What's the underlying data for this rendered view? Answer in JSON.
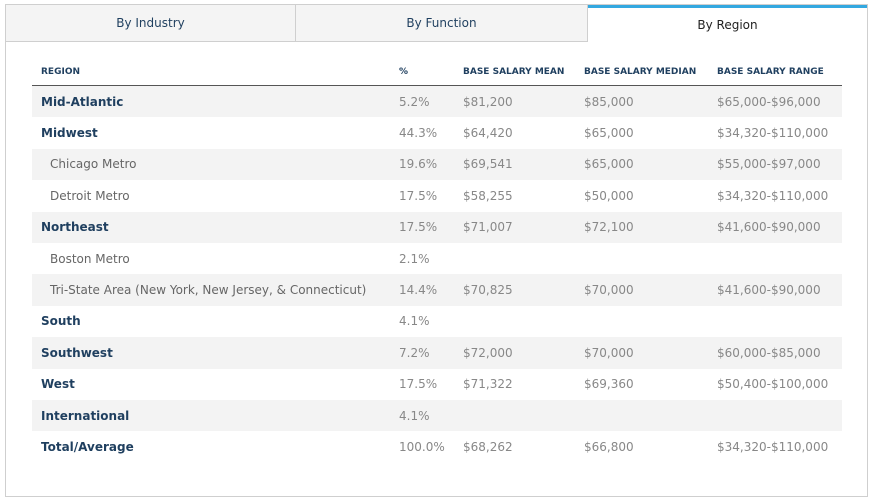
{
  "tabs": [
    {
      "label": "By Industry",
      "active": false
    },
    {
      "label": "By Function",
      "active": false
    },
    {
      "label": "By Region",
      "active": true
    }
  ],
  "table": {
    "headers": {
      "region": "REGION",
      "percent": "%",
      "mean": "BASE SALARY MEAN",
      "median": "BASE SALARY MEDIAN",
      "range": "BASE SALARY RANGE"
    },
    "rows": [
      {
        "region": "Mid-Atlantic",
        "percent": "5.2%",
        "mean": "$81,200",
        "median": "$85,000",
        "range": "$65,000-$96,000"
      },
      {
        "region": "Midwest",
        "percent": "44.3%",
        "mean": "$64,420",
        "median": "$65,000",
        "range": "$34,320-$110,000"
      },
      {
        "region": "Chicago Metro",
        "percent": "19.6%",
        "mean": "$69,541",
        "median": "$65,000",
        "range": "$55,000-$97,000"
      },
      {
        "region": "Detroit Metro",
        "percent": "17.5%",
        "mean": "$58,255",
        "median": "$50,000",
        "range": "$34,320-$110,000"
      },
      {
        "region": "Northeast",
        "percent": "17.5%",
        "mean": "$71,007",
        "median": "$72,100",
        "range": "$41,600-$90,000"
      },
      {
        "region": "Boston Metro",
        "percent": "2.1%",
        "mean": "",
        "median": "",
        "range": ""
      },
      {
        "region": "Tri-State Area (New York, New Jersey, & Connecticut)",
        "percent": "14.4%",
        "mean": "$70,825",
        "median": "$70,000",
        "range": "$41,600-$90,000"
      },
      {
        "region": "South",
        "percent": "4.1%",
        "mean": "",
        "median": "",
        "range": ""
      },
      {
        "region": "Southwest",
        "percent": "7.2%",
        "mean": "$72,000",
        "median": "$70,000",
        "range": "$60,000-$85,000"
      },
      {
        "region": "West",
        "percent": "17.5%",
        "mean": "$71,322",
        "median": "$69,360",
        "range": "$50,400-$100,000"
      },
      {
        "region": "International",
        "percent": "4.1%",
        "mean": "",
        "median": "",
        "range": ""
      },
      {
        "region": "Total/Average",
        "percent": "100.0%",
        "mean": "$68,262",
        "median": "$66,800",
        "range": "$34,320-$110,000"
      }
    ]
  },
  "colors": {
    "accent": "#33a8e0",
    "heading": "#1f3f5f",
    "shade": "#f3f3f3"
  }
}
